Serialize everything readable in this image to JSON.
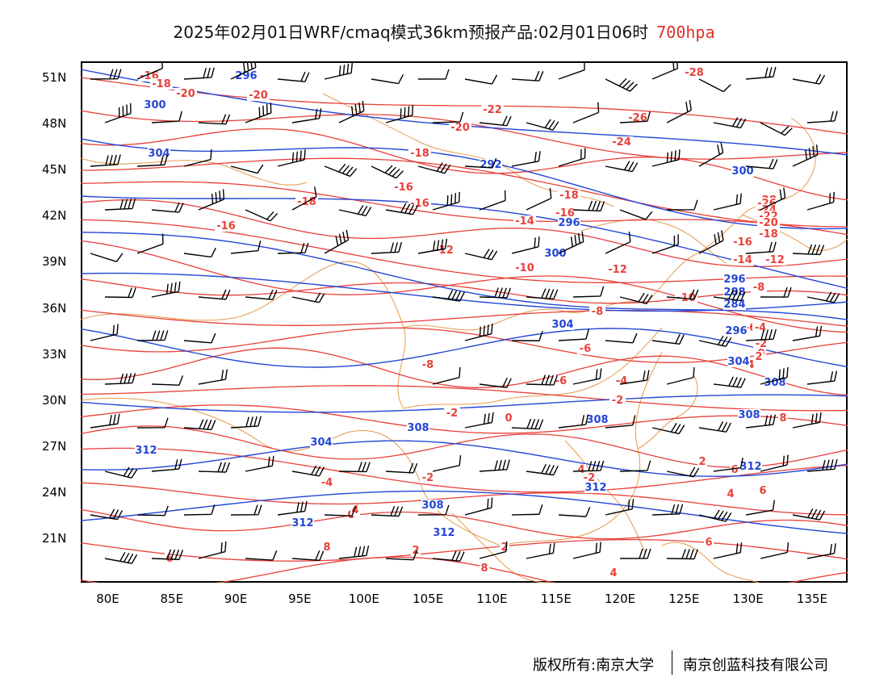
{
  "title": {
    "main": "2025年02月01日WRF/cmaq模式36km预报产品:02月01日06时",
    "level": "700hpa",
    "level_color": "#e0302a"
  },
  "axes": {
    "lat_labels": [
      "51N",
      "48N",
      "45N",
      "42N",
      "39N",
      "36N",
      "33N",
      "30N",
      "27N",
      "24N",
      "21N"
    ],
    "lon_labels": [
      "80E",
      "85E",
      "90E",
      "95E",
      "100E",
      "105E",
      "110E",
      "115E",
      "120E",
      "125E",
      "130E",
      "135E"
    ]
  },
  "contours": {
    "temperature_color": "#e8403a",
    "height_color": "#2346d6",
    "boundary_color": "#e39a4a",
    "temperature_labels": [
      "-16",
      "-18",
      "-20",
      "-20",
      "-22",
      "-20",
      "-28",
      "-26",
      "-24",
      "-18",
      "-16",
      "-18",
      "-16",
      "-16",
      "-14",
      "-16",
      "-18",
      "-12",
      "-10",
      "-12",
      "-10",
      "-8",
      "-6",
      "-8",
      "-6",
      "-4",
      "-2",
      "-2",
      "0",
      "0",
      "-2",
      "-4",
      "-2",
      "0",
      "2",
      "2",
      "2",
      "4",
      "4",
      "4",
      "4",
      "6",
      "6",
      "6",
      "8",
      "8",
      "8",
      "-28",
      "-26",
      "-24",
      "-22",
      "-20",
      "-18",
      "-16",
      "-14",
      "-12",
      "-8",
      "-6",
      "-4",
      "-2",
      "0",
      "2",
      "4",
      "6"
    ],
    "height_labels": [
      "296",
      "300",
      "304",
      "292",
      "296",
      "300",
      "304",
      "308",
      "304",
      "308",
      "308",
      "312",
      "312",
      "308",
      "312",
      "312",
      "296",
      "288",
      "284",
      "296",
      "300",
      "304",
      "308",
      "312"
    ]
  },
  "credit": {
    "left": "版权所有:南京大学",
    "right": "南京创蓝科技有限公司"
  }
}
